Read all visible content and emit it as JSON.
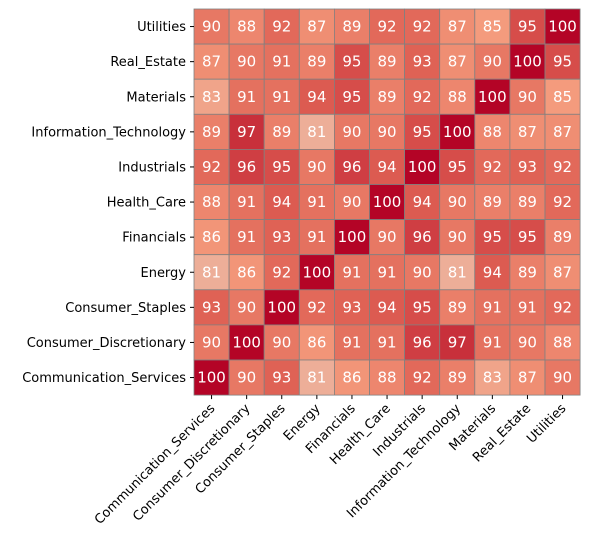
{
  "chart_data": {
    "type": "heatmap",
    "title": "",
    "xlabel": "",
    "ylabel": "",
    "x_categories": [
      "Communication_Services",
      "Consumer_Discretionary",
      "Consumer_Staples",
      "Energy",
      "Financials",
      "Health_Care",
      "Industrials",
      "Information_Technology",
      "Materials",
      "Real_Estate",
      "Utilities"
    ],
    "y_categories_top_to_bottom": [
      "Utilities",
      "Real_Estate",
      "Materials",
      "Information_Technology",
      "Industrials",
      "Health_Care",
      "Financials",
      "Energy",
      "Consumer_Staples",
      "Consumer_Discretionary",
      "Communication_Services"
    ],
    "values": [
      [
        90,
        88,
        92,
        87,
        89,
        92,
        92,
        87,
        85,
        95,
        100
      ],
      [
        87,
        90,
        91,
        89,
        95,
        89,
        93,
        87,
        90,
        100,
        95
      ],
      [
        83,
        91,
        91,
        94,
        95,
        89,
        92,
        88,
        100,
        90,
        85
      ],
      [
        89,
        97,
        89,
        81,
        90,
        90,
        95,
        100,
        88,
        87,
        87
      ],
      [
        92,
        96,
        95,
        90,
        96,
        94,
        100,
        95,
        92,
        93,
        92
      ],
      [
        88,
        91,
        94,
        91,
        90,
        100,
        94,
        90,
        89,
        89,
        92
      ],
      [
        86,
        91,
        93,
        91,
        100,
        90,
        96,
        90,
        95,
        95,
        89
      ],
      [
        81,
        86,
        92,
        100,
        91,
        91,
        90,
        81,
        94,
        89,
        87
      ],
      [
        93,
        90,
        100,
        92,
        93,
        94,
        95,
        89,
        91,
        91,
        92
      ],
      [
        90,
        100,
        90,
        86,
        91,
        91,
        96,
        97,
        91,
        90,
        88
      ],
      [
        100,
        90,
        93,
        81,
        86,
        88,
        92,
        89,
        83,
        87,
        90
      ]
    ],
    "colormap": "coolwarm",
    "color_range": [
      -100,
      100
    ],
    "cell_border_color": "#808080",
    "grid": false
  }
}
